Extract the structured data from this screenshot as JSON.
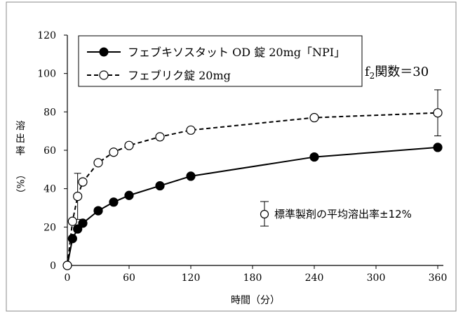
{
  "chart_data": {
    "type": "line",
    "xlabel": "時間（分）",
    "ylabel_chars": [
      "溶",
      "出",
      "率"
    ],
    "ylabel_unit": "（%）",
    "xlim": [
      0,
      360
    ],
    "ylim": [
      0,
      120
    ],
    "x_ticks": [
      "0",
      "60",
      "120",
      "180",
      "240",
      "300",
      "360"
    ],
    "y_ticks": [
      "0",
      "20",
      "40",
      "60",
      "80",
      "100",
      "120"
    ],
    "grid": false,
    "legend_position": "top-left",
    "series": [
      {
        "name": "フェブキソスタット OD 錠 20mg「NPI」",
        "marker": "filled-circle",
        "line_style": "solid",
        "x": [
          0,
          5,
          10,
          15,
          30,
          45,
          60,
          90,
          120,
          240,
          360
        ],
        "values": [
          0,
          14,
          19,
          22,
          28.5,
          33,
          36.5,
          41.5,
          46.5,
          56.5,
          61.5
        ]
      },
      {
        "name": "フェブリク錠 20mg",
        "marker": "open-circle",
        "line_style": "dashed",
        "x": [
          0,
          5,
          10,
          15,
          30,
          45,
          60,
          90,
          120,
          240,
          360
        ],
        "values": [
          0,
          23,
          36,
          43.5,
          53.5,
          59,
          62.5,
          67,
          70.5,
          77,
          79.5
        ],
        "error_bars": [
          {
            "x": 10,
            "low": 24,
            "high": 48
          },
          {
            "x": 360,
            "low": 67.5,
            "high": 91.5
          }
        ]
      }
    ],
    "annotations": {
      "f2_prefix": "f",
      "f2_subscript": "2",
      "f2_rest": "関数＝30",
      "reference_label": "標準製剤の平均溶出率±12%"
    }
  }
}
